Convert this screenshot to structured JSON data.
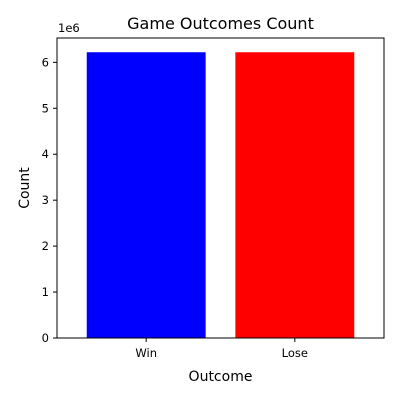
{
  "chart_data": {
    "type": "bar",
    "title": "Game Outcomes Count",
    "xlabel": "Outcome",
    "ylabel": "Count",
    "categories": [
      "Win",
      "Lose"
    ],
    "values": [
      6220000,
      6220000
    ],
    "colors": [
      "#0000ff",
      "#ff0000"
    ],
    "ylim": [
      0,
      6530000
    ],
    "yticks": [
      0,
      1000000,
      2000000,
      3000000,
      4000000,
      5000000,
      6000000
    ],
    "ytick_labels": [
      "0",
      "1",
      "2",
      "3",
      "4",
      "5",
      "6"
    ],
    "y_offset_label": "1e6",
    "grid": false,
    "legend": false
  }
}
